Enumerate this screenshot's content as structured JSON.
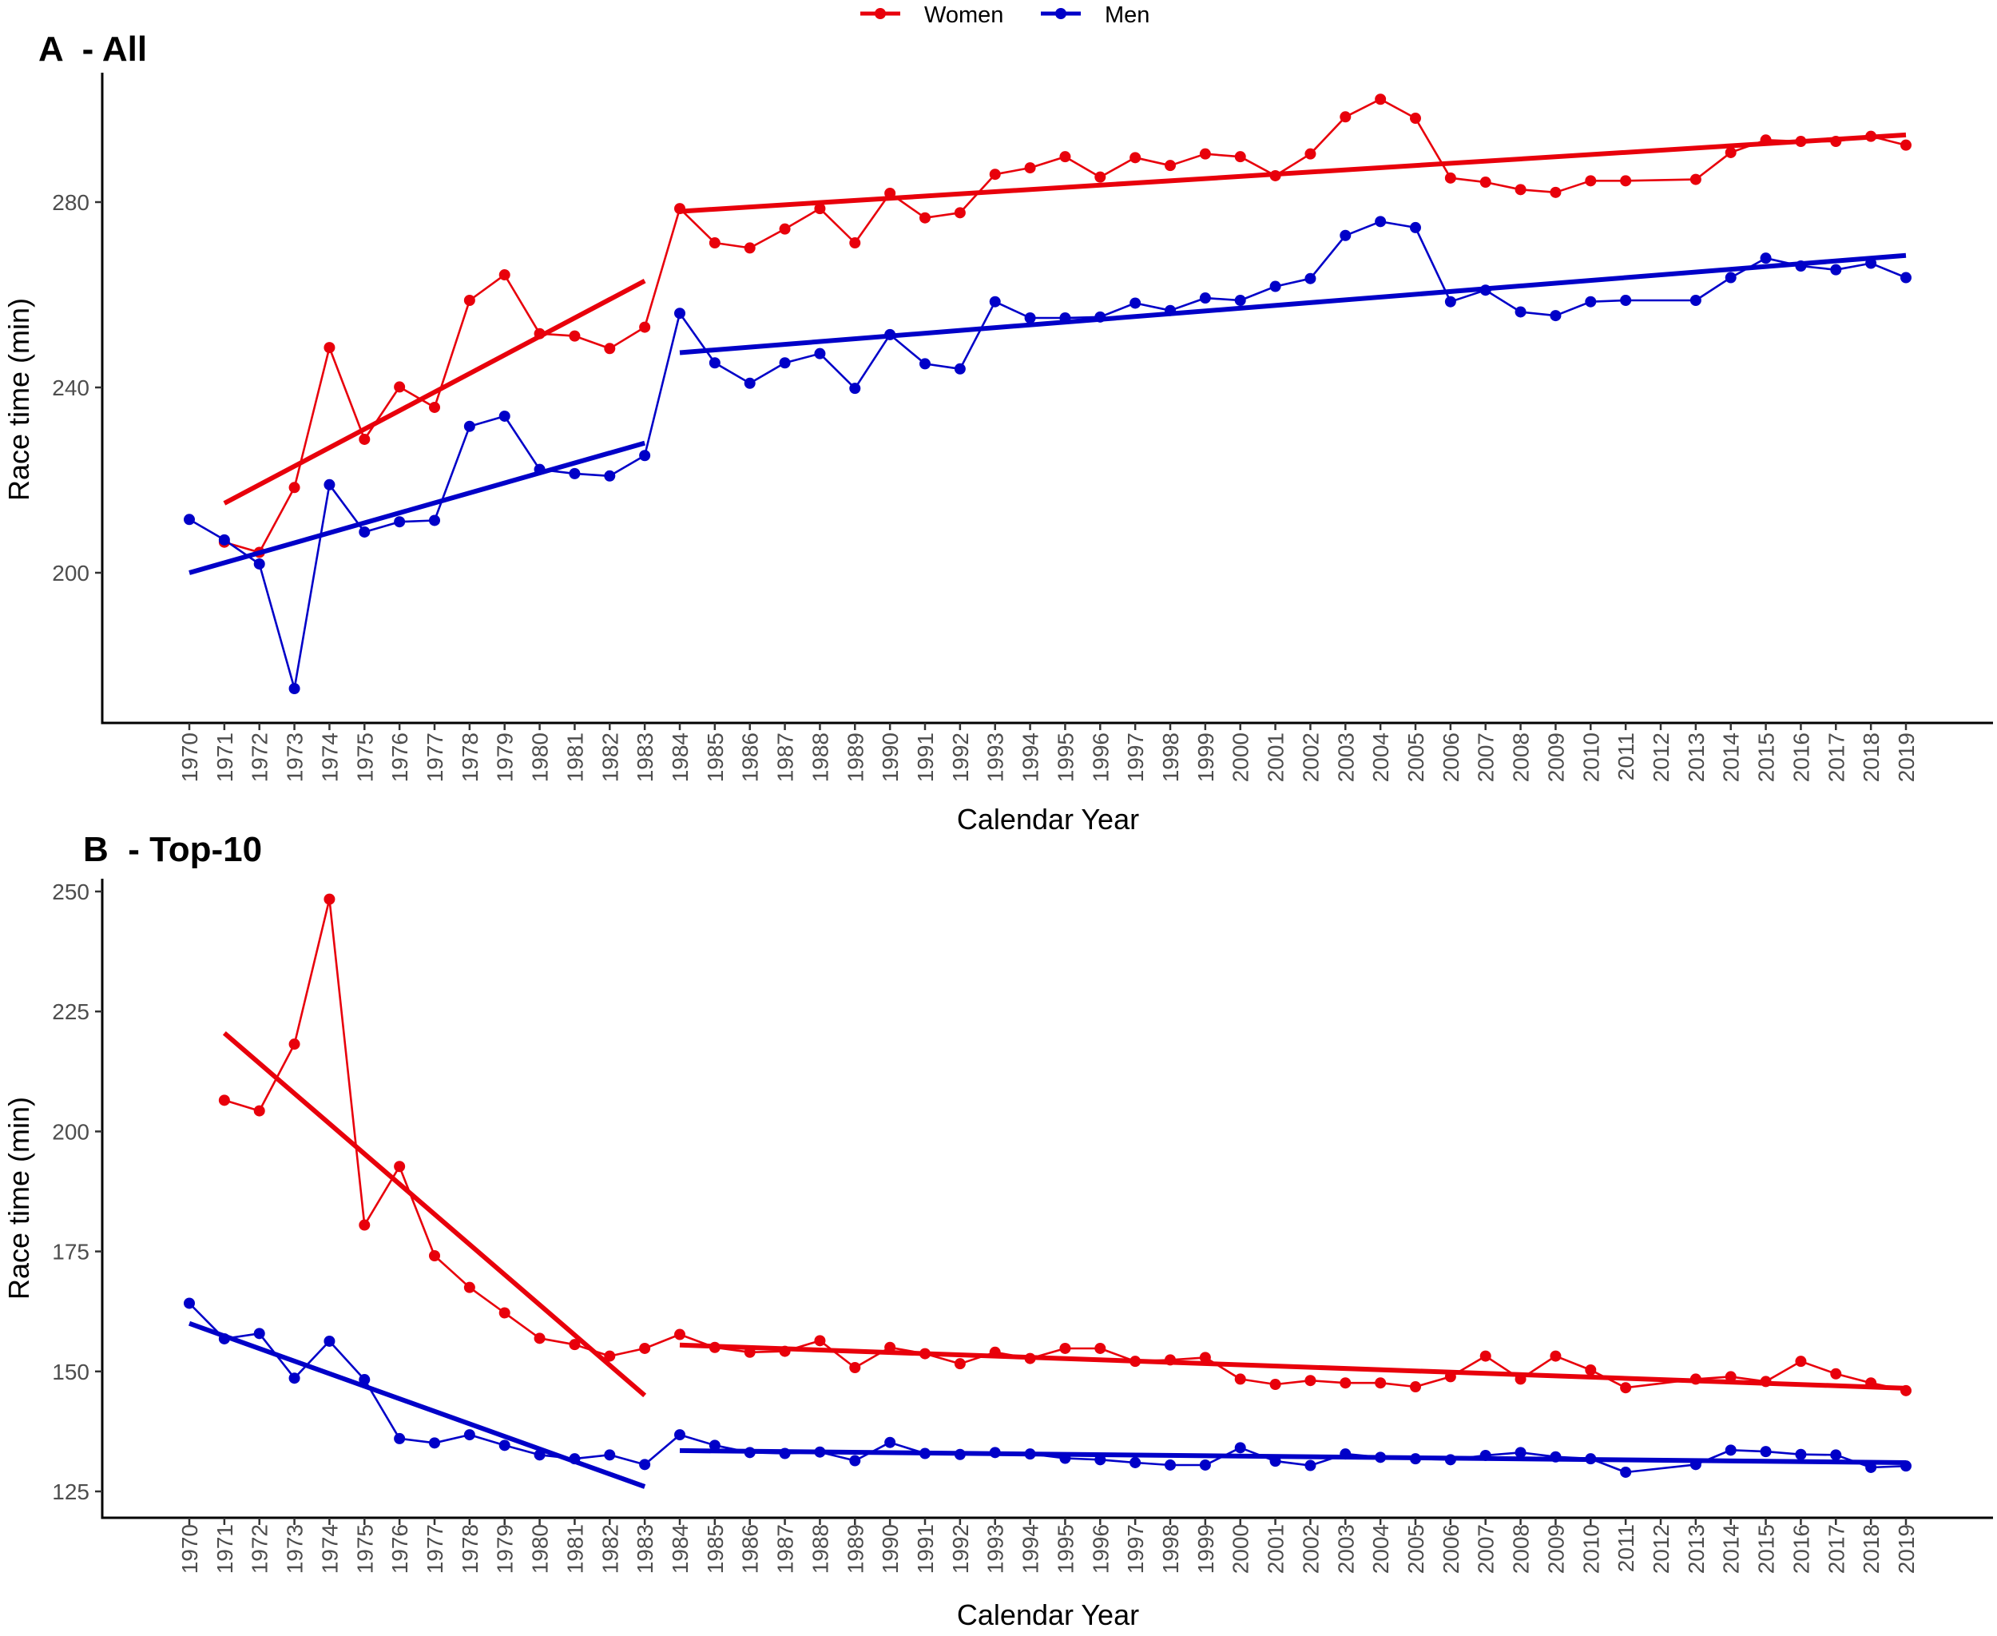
{
  "legend": {
    "items": [
      {
        "label": "Women",
        "color": "#e8000b"
      },
      {
        "label": "Men",
        "color": "#0000c8"
      }
    ]
  },
  "chart_data": [
    {
      "type": "line",
      "title": "A  - All",
      "xlabel": "Calendar Year",
      "ylabel": "Race time (min)",
      "yticks": [
        200,
        240,
        280
      ],
      "ylim": [
        165,
        308
      ],
      "x": [
        1970,
        1971,
        1972,
        1973,
        1974,
        1975,
        1976,
        1977,
        1978,
        1979,
        1980,
        1981,
        1982,
        1983,
        1984,
        1985,
        1986,
        1987,
        1988,
        1989,
        1990,
        1991,
        1992,
        1993,
        1994,
        1995,
        1996,
        1997,
        1998,
        1999,
        2000,
        2001,
        2002,
        2003,
        2004,
        2005,
        2006,
        2007,
        2008,
        2009,
        2010,
        2011,
        2012,
        2013,
        2014,
        2015,
        2016,
        2017,
        2018,
        2019
      ],
      "series": [
        {
          "name": "Women",
          "color": "#e8000b",
          "points": [
            [
              1971,
              206.6
            ],
            [
              1972,
              204.4
            ],
            [
              1973,
              218.4
            ],
            [
              1974,
              248.6
            ],
            [
              1975,
              228.8
            ],
            [
              1976,
              240.1
            ],
            [
              1977,
              235.7
            ],
            [
              1978,
              258.8
            ],
            [
              1979,
              264.3
            ],
            [
              1980,
              251.6
            ],
            [
              1981,
              251.1
            ],
            [
              1982,
              248.4
            ],
            [
              1983,
              253.0
            ],
            [
              1984,
              278.6
            ],
            [
              1985,
              271.2
            ],
            [
              1986,
              270.1
            ],
            [
              1987,
              274.2
            ],
            [
              1988,
              278.6
            ],
            [
              1989,
              271.2
            ],
            [
              1990,
              281.9
            ],
            [
              1991,
              276.6
            ],
            [
              1992,
              277.7
            ],
            [
              1993,
              286.0
            ],
            [
              1994,
              287.4
            ],
            [
              1995,
              289.8
            ],
            [
              1996,
              285.4
            ],
            [
              1997,
              289.6
            ],
            [
              1998,
              287.9
            ],
            [
              1999,
              290.4
            ],
            [
              2000,
              289.8
            ],
            [
              2001,
              285.7
            ],
            [
              2002,
              290.4
            ],
            [
              2003,
              298.4
            ],
            [
              2004,
              302.2
            ],
            [
              2005,
              298.1
            ],
            [
              2006,
              285.2
            ],
            [
              2007,
              284.3
            ],
            [
              2008,
              282.7
            ],
            [
              2009,
              282.1
            ],
            [
              2010,
              284.6
            ],
            [
              2011,
              284.6
            ],
            [
              2013,
              284.9
            ],
            [
              2014,
              290.7
            ],
            [
              2015,
              293.4
            ],
            [
              2016,
              293.1
            ],
            [
              2017,
              293.1
            ],
            [
              2018,
              294.2
            ],
            [
              2019,
              292.3
            ]
          ],
          "trends": [
            {
              "x": [
                1971,
                1983
              ],
              "y": [
                215.0,
                263.0
              ]
            },
            {
              "x": [
                1984,
                2019
              ],
              "y": [
                278.0,
                294.5
              ]
            }
          ]
        },
        {
          "name": "Men",
          "color": "#0000c8",
          "points": [
            [
              1970,
              211.5
            ],
            [
              1971,
              207.1
            ],
            [
              1972,
              201.9
            ],
            [
              1973,
              175.0
            ],
            [
              1974,
              219.0
            ],
            [
              1975,
              208.8
            ],
            [
              1976,
              211.0
            ],
            [
              1977,
              211.3
            ],
            [
              1978,
              231.6
            ],
            [
              1979,
              233.8
            ],
            [
              1980,
              222.3
            ],
            [
              1981,
              221.4
            ],
            [
              1982,
              220.9
            ],
            [
              1983,
              225.3
            ],
            [
              1984,
              256.0
            ],
            [
              1985,
              245.3
            ],
            [
              1986,
              240.9
            ],
            [
              1987,
              245.3
            ],
            [
              1988,
              247.3
            ],
            [
              1989,
              239.8
            ],
            [
              1990,
              251.4
            ],
            [
              1991,
              245.1
            ],
            [
              1992,
              244.0
            ],
            [
              1993,
              258.5
            ],
            [
              1994,
              255.0
            ],
            [
              1995,
              255.0
            ],
            [
              1996,
              255.2
            ],
            [
              1997,
              258.2
            ],
            [
              1998,
              256.6
            ],
            [
              1999,
              259.3
            ],
            [
              2000,
              258.8
            ],
            [
              2001,
              261.8
            ],
            [
              2002,
              263.5
            ],
            [
              2003,
              272.8
            ],
            [
              2004,
              275.8
            ],
            [
              2005,
              274.5
            ],
            [
              2006,
              258.5
            ],
            [
              2007,
              261.0
            ],
            [
              2008,
              256.3
            ],
            [
              2009,
              255.5
            ],
            [
              2010,
              258.5
            ],
            [
              2011,
              258.8
            ],
            [
              2013,
              258.8
            ],
            [
              2014,
              263.7
            ],
            [
              2015,
              267.9
            ],
            [
              2016,
              266.2
            ],
            [
              2017,
              265.4
            ],
            [
              2018,
              266.8
            ],
            [
              2019,
              263.7
            ]
          ],
          "trends": [
            {
              "x": [
                1970,
                1983
              ],
              "y": [
                200.0,
                228.0
              ]
            },
            {
              "x": [
                1984,
                2019
              ],
              "y": [
                247.5,
                268.5
              ]
            }
          ]
        }
      ],
      "grid": false,
      "legend_position": "top"
    },
    {
      "type": "line",
      "title": "B  - Top-10",
      "xlabel": "Calendar Year",
      "ylabel": "Race time (min)",
      "yticks": [
        125,
        150,
        175,
        200,
        225,
        250
      ],
      "ylim": [
        120,
        253
      ],
      "x": [
        1970,
        1971,
        1972,
        1973,
        1974,
        1975,
        1976,
        1977,
        1978,
        1979,
        1980,
        1981,
        1982,
        1983,
        1984,
        1985,
        1986,
        1987,
        1988,
        1989,
        1990,
        1991,
        1992,
        1993,
        1994,
        1995,
        1996,
        1997,
        1998,
        1999,
        2000,
        2001,
        2002,
        2003,
        2004,
        2005,
        2006,
        2007,
        2008,
        2009,
        2010,
        2011,
        2012,
        2013,
        2014,
        2015,
        2016,
        2017,
        2018,
        2019
      ],
      "series": [
        {
          "name": "Women",
          "color": "#e8000b",
          "points": [
            [
              1971,
              206.5
            ],
            [
              1972,
              204.3
            ],
            [
              1973,
              218.2
            ],
            [
              1974,
              248.4
            ],
            [
              1975,
              180.5
            ],
            [
              1976,
              192.7
            ],
            [
              1977,
              174.1
            ],
            [
              1978,
              167.5
            ],
            [
              1979,
              162.2
            ],
            [
              1980,
              156.9
            ],
            [
              1981,
              155.6
            ],
            [
              1982,
              153.2
            ],
            [
              1983,
              154.8
            ],
            [
              1984,
              157.7
            ],
            [
              1985,
              155.0
            ],
            [
              1986,
              154.0
            ],
            [
              1987,
              154.2
            ],
            [
              1988,
              156.4
            ],
            [
              1989,
              150.8
            ],
            [
              1990,
              155.0
            ],
            [
              1991,
              153.7
            ],
            [
              1992,
              151.6
            ],
            [
              1993,
              154.0
            ],
            [
              1994,
              152.7
            ],
            [
              1995,
              154.8
            ],
            [
              1996,
              154.8
            ],
            [
              1997,
              152.1
            ],
            [
              1998,
              152.4
            ],
            [
              1999,
              152.9
            ],
            [
              2000,
              148.4
            ],
            [
              2001,
              147.3
            ],
            [
              2002,
              148.1
            ],
            [
              2003,
              147.6
            ],
            [
              2004,
              147.6
            ],
            [
              2005,
              146.8
            ],
            [
              2006,
              148.9
            ],
            [
              2007,
              153.2
            ],
            [
              2008,
              148.4
            ],
            [
              2009,
              153.2
            ],
            [
              2010,
              150.3
            ],
            [
              2011,
              146.6
            ],
            [
              2013,
              148.4
            ],
            [
              2014,
              148.9
            ],
            [
              2015,
              147.9
            ],
            [
              2016,
              152.1
            ],
            [
              2017,
              149.5
            ],
            [
              2018,
              147.6
            ],
            [
              2019,
              146.0
            ]
          ],
          "trends": [
            {
              "x": [
                1971,
                1983
              ],
              "y": [
                220.5,
                145.0
              ]
            },
            {
              "x": [
                1984,
                2019
              ],
              "y": [
                155.5,
                146.5
              ]
            }
          ]
        },
        {
          "name": "Men",
          "color": "#0000c8",
          "points": [
            [
              1970,
              164.2
            ],
            [
              1971,
              156.8
            ],
            [
              1972,
              157.9
            ],
            [
              1973,
              148.6
            ],
            [
              1974,
              156.3
            ],
            [
              1975,
              148.3
            ],
            [
              1976,
              136.0
            ],
            [
              1977,
              135.1
            ],
            [
              1978,
              136.8
            ],
            [
              1979,
              134.6
            ],
            [
              1980,
              132.6
            ],
            [
              1981,
              131.8
            ],
            [
              1982,
              132.6
            ],
            [
              1983,
              130.6
            ],
            [
              1984,
              136.8
            ],
            [
              1985,
              134.6
            ],
            [
              1986,
              133.1
            ],
            [
              1987,
              132.9
            ],
            [
              1988,
              133.2
            ],
            [
              1989,
              131.4
            ],
            [
              1990,
              135.2
            ],
            [
              1991,
              132.9
            ],
            [
              1992,
              132.7
            ],
            [
              1993,
              133.1
            ],
            [
              1994,
              132.8
            ],
            [
              1995,
              131.9
            ],
            [
              1996,
              131.6
            ],
            [
              1997,
              131.0
            ],
            [
              1998,
              130.5
            ],
            [
              1999,
              130.5
            ],
            [
              2000,
              134.1
            ],
            [
              2001,
              131.3
            ],
            [
              2002,
              130.4
            ],
            [
              2003,
              132.8
            ],
            [
              2004,
              132.1
            ],
            [
              2005,
              131.8
            ],
            [
              2006,
              131.6
            ],
            [
              2007,
              132.5
            ],
            [
              2008,
              133.1
            ],
            [
              2009,
              132.2
            ],
            [
              2010,
              131.8
            ],
            [
              2011,
              129.0
            ],
            [
              2013,
              130.6
            ],
            [
              2014,
              133.6
            ],
            [
              2015,
              133.3
            ],
            [
              2016,
              132.7
            ],
            [
              2017,
              132.6
            ],
            [
              2018,
              130.0
            ],
            [
              2019,
              130.3
            ]
          ],
          "trends": [
            {
              "x": [
                1970,
                1983
              ],
              "y": [
                160.0,
                126.0
              ]
            },
            {
              "x": [
                1984,
                2019
              ],
              "y": [
                133.5,
                131.0
              ]
            }
          ]
        }
      ],
      "grid": false,
      "legend_position": "top"
    }
  ]
}
